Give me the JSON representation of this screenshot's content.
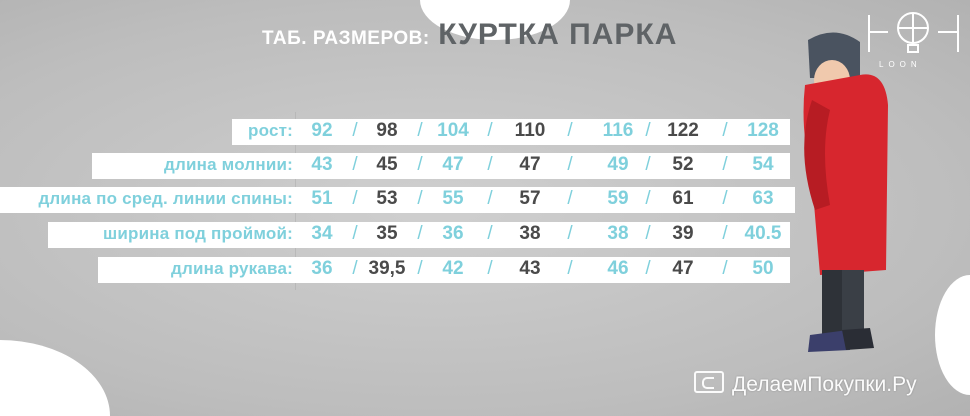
{
  "title": {
    "prefix": "ТАБ. РАЗМЕРОВ:",
    "product": "КУРТКА ПАРКА"
  },
  "brand": {
    "logo_text": "LOON"
  },
  "watermark": "ДелаемПокупки.Ру",
  "table": {
    "rows": [
      {
        "label": "рост:",
        "values": [
          "92",
          "98",
          "104",
          "110",
          "116",
          "122",
          "128"
        ]
      },
      {
        "label": "длина молнии:",
        "values": [
          "43",
          "45",
          "47",
          "47",
          "49",
          "52",
          "54"
        ]
      },
      {
        "label": "длина по сред. линии спины:",
        "values": [
          "51",
          "53",
          "55",
          "57",
          "59",
          "61",
          "63"
        ]
      },
      {
        "label": "ширина под проймой:",
        "values": [
          "34",
          "35",
          "36",
          "38",
          "38",
          "39",
          "40.5"
        ]
      },
      {
        "label": "длина рукава:",
        "values": [
          "36",
          "39,5",
          "42",
          "43",
          "46",
          "47",
          "50"
        ]
      }
    ],
    "separator": "/"
  },
  "colors": {
    "accent": "#7fd0dc",
    "dark": "#4a4a4a",
    "jacket": "#d7262e"
  }
}
